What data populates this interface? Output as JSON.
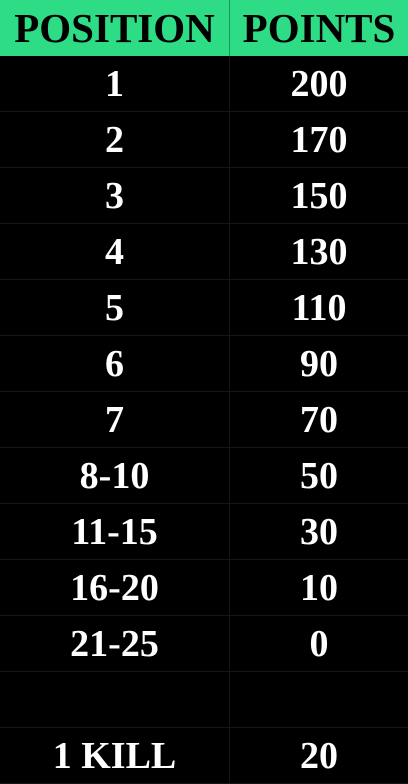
{
  "header": {
    "position_label": "POSITION",
    "points_label": "POINTS"
  },
  "rows": [
    {
      "position": "1",
      "points": "200"
    },
    {
      "position": "2",
      "points": "170"
    },
    {
      "position": "3",
      "points": "150"
    },
    {
      "position": "4",
      "points": "130"
    },
    {
      "position": "5",
      "points": "110"
    },
    {
      "position": "6",
      "points": "90"
    },
    {
      "position": "7",
      "points": "70"
    },
    {
      "position": "8-10",
      "points": "50"
    },
    {
      "position": "11-15",
      "points": "30"
    },
    {
      "position": "16-20",
      "points": "10"
    },
    {
      "position": "21-25",
      "points": "0"
    },
    {
      "position": "",
      "points": ""
    },
    {
      "position": "1 KILL",
      "points": "20"
    }
  ],
  "colors": {
    "header_bg": "#2fdc86",
    "header_text": "#000000",
    "body_bg": "#000000",
    "body_text": "#ffffff"
  }
}
